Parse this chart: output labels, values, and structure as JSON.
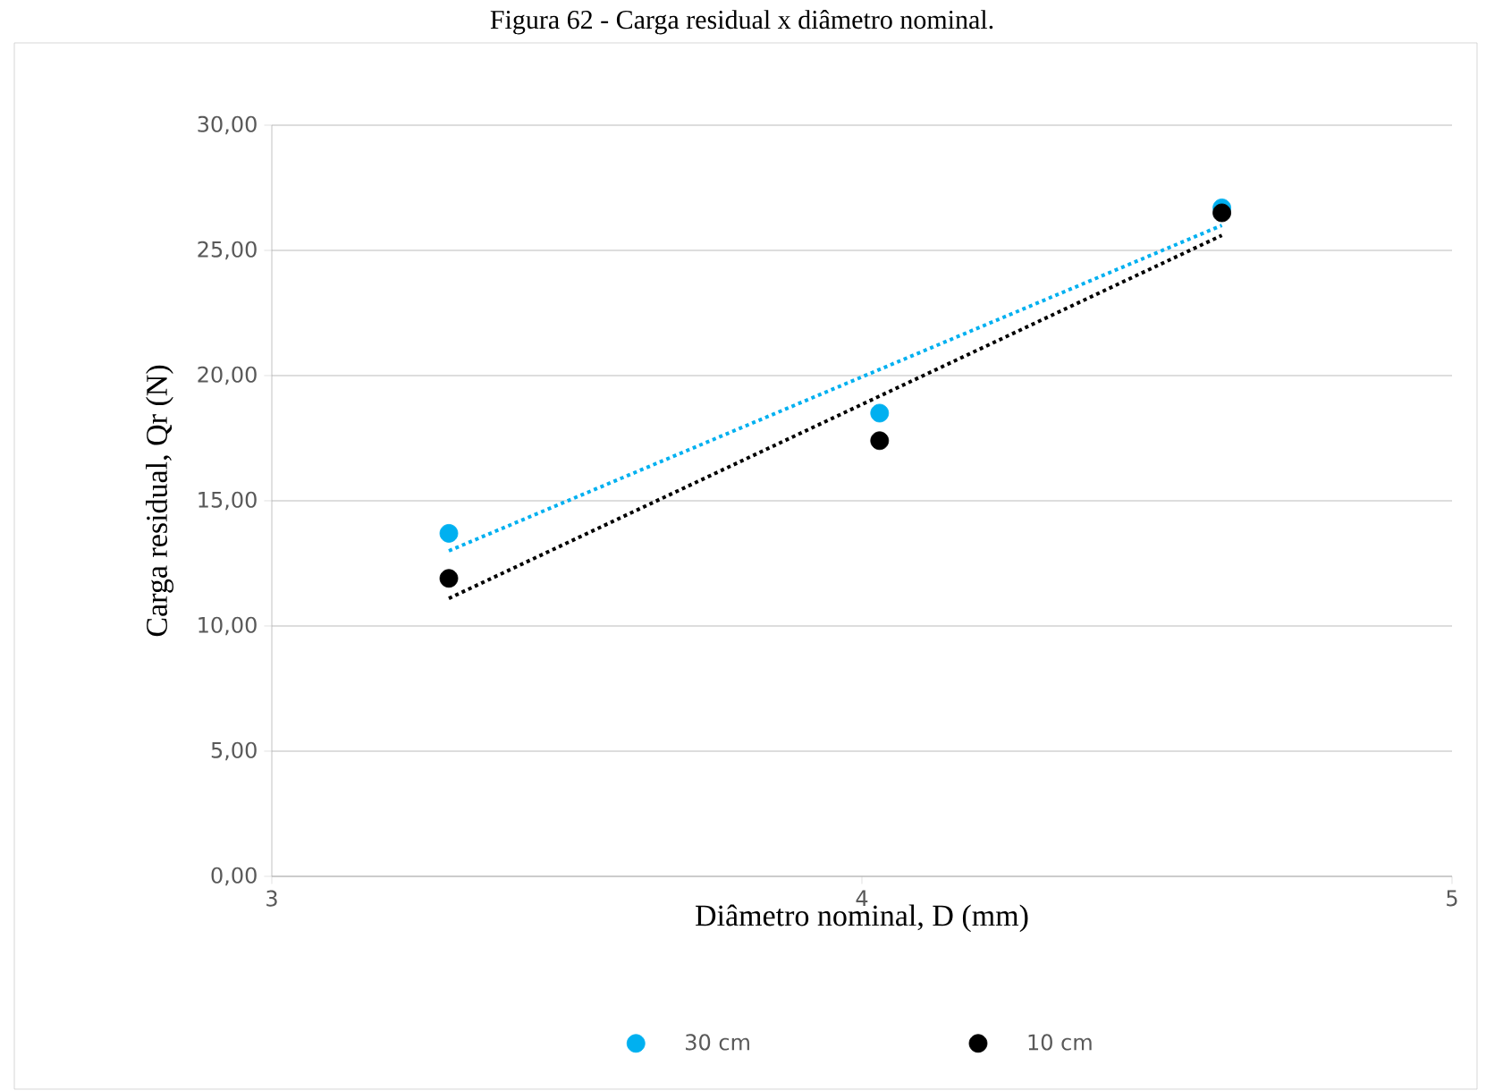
{
  "chart_data": {
    "type": "scatter",
    "title": "Figura 62 - Carga residual x diâmetro nominal.",
    "xlabel": "Diâmetro nominal, D (mm)",
    "ylabel": "Carga residual, Qr (N)",
    "xlim": [
      3,
      5
    ],
    "xticks": [
      3,
      4,
      5
    ],
    "ylim": [
      0,
      30
    ],
    "yticks": [
      {
        "value": 0,
        "label": "0,00"
      },
      {
        "value": 5,
        "label": "5,00"
      },
      {
        "value": 10,
        "label": "10,00"
      },
      {
        "value": 15,
        "label": "15,00"
      },
      {
        "value": 20,
        "label": "20,00"
      },
      {
        "value": 25,
        "label": "25,00"
      },
      {
        "value": 30,
        "label": "30,00"
      }
    ],
    "grid": "y",
    "legend": "bottom",
    "series": [
      {
        "name": "30 cm",
        "color": "#00b0f0",
        "marker": "circle",
        "x": [
          3.3,
          4.03,
          4.61
        ],
        "values": [
          13.7,
          18.5,
          26.7
        ]
      },
      {
        "name": "10 cm",
        "color": "#000000",
        "marker": "circle",
        "x": [
          3.3,
          4.03,
          4.61
        ],
        "values": [
          11.9,
          17.4,
          26.5
        ]
      },
      {
        "type": "line",
        "line_style": "dotted",
        "marker": "none",
        "color": "#00b0f0",
        "x": [
          3.3,
          4.61
        ],
        "values": [
          13.0,
          26.0
        ]
      },
      {
        "type": "line",
        "line_style": "dotted",
        "marker": "none",
        "color": "#000000",
        "x": [
          3.3,
          4.61
        ],
        "values": [
          11.1,
          25.6
        ]
      }
    ]
  }
}
